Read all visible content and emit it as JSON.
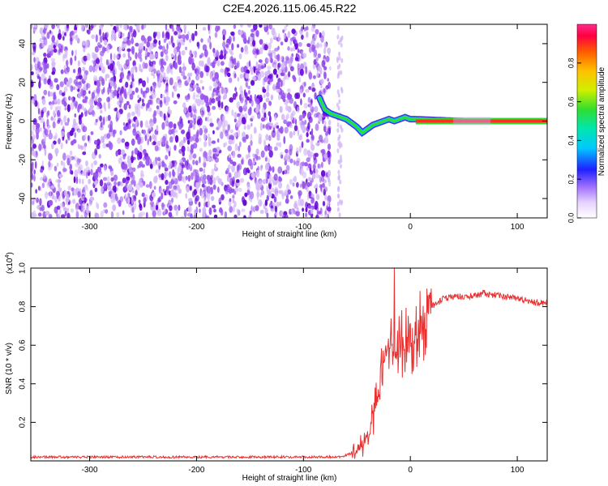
{
  "title": "C2E4.2026.115.06.45.R22",
  "colors": {
    "snr_line": "#e83030",
    "scatter_dark": "#6a0bd8",
    "scatter_mid": "#9a55ee",
    "scatter_light": "#d4b8f7"
  },
  "chart_data": [
    {
      "type": "heatmap",
      "name": "spectrogram",
      "xlabel": "Height of straight line (km)",
      "ylabel": "Frequency (Hz)",
      "xlim": [
        -355,
        128
      ],
      "ylim": [
        -50,
        50
      ],
      "xticks": [
        -300,
        -200,
        -100,
        0,
        100
      ],
      "yticks": [
        -40,
        -20,
        0,
        20,
        40
      ],
      "noise_region_x": [
        -355,
        -75
      ],
      "signal_trace": {
        "x": [
          -85,
          -80,
          -75,
          -70,
          -65,
          -60,
          -55,
          -50,
          -45,
          -40,
          -35,
          -30,
          -25,
          -20,
          -15,
          -10,
          -5,
          0,
          5,
          50,
          100,
          128
        ],
        "y": [
          12,
          6,
          4,
          3,
          2,
          1,
          -1,
          -3,
          -6,
          -4,
          -2,
          -1,
          0,
          1,
          0,
          1,
          2,
          1,
          1,
          0,
          0,
          0
        ]
      },
      "colorbar": {
        "label": "Normalized spectral amplitude",
        "range": [
          0.0,
          1.0
        ],
        "ticks": [
          0.0,
          0.2,
          0.4,
          0.6,
          0.8
        ],
        "tick_labels": [
          "0.0",
          "0.2",
          "0.4",
          "0.6",
          "0.8"
        ]
      },
      "tick_labels": {
        "x": [
          "-300",
          "-200",
          "-100",
          "0",
          "100"
        ],
        "y": [
          "-40",
          "-20",
          "0",
          "20",
          "40"
        ]
      }
    },
    {
      "type": "line",
      "name": "snr",
      "xlabel": "Height of straight line (km)",
      "ylabel": "SNR (10 * v/v)",
      "exponent_label": "(x10",
      "exponent_power": "4",
      "exponent_close": ")",
      "xlim": [
        -355,
        128
      ],
      "ylim": [
        0,
        1.0
      ],
      "xticks": [
        -300,
        -200,
        -100,
        0,
        100
      ],
      "yticks": [
        0.2,
        0.4,
        0.6,
        0.8,
        1.0
      ],
      "tick_labels": {
        "x": [
          "-300",
          "-200",
          "-100",
          "0",
          "100"
        ],
        "y": [
          "0.2",
          "0.4",
          "0.6",
          "0.8",
          "1.0"
        ]
      },
      "envelope": {
        "x": [
          -355,
          -100,
          -65,
          -55,
          -45,
          -38,
          -30,
          -25,
          -20,
          -15,
          -10,
          -5,
          0,
          5,
          10,
          15,
          20,
          25,
          30,
          40,
          50,
          60,
          70,
          80,
          90,
          100,
          110,
          120,
          128
        ],
        "y": [
          0.02,
          0.02,
          0.02,
          0.04,
          0.08,
          0.15,
          0.35,
          0.55,
          0.58,
          0.6,
          0.6,
          0.62,
          0.65,
          0.66,
          0.7,
          0.76,
          0.8,
          0.82,
          0.84,
          0.85,
          0.85,
          0.86,
          0.87,
          0.86,
          0.85,
          0.84,
          0.83,
          0.82,
          0.82
        ]
      },
      "spike": {
        "x": -15,
        "y": 1.0
      }
    }
  ]
}
